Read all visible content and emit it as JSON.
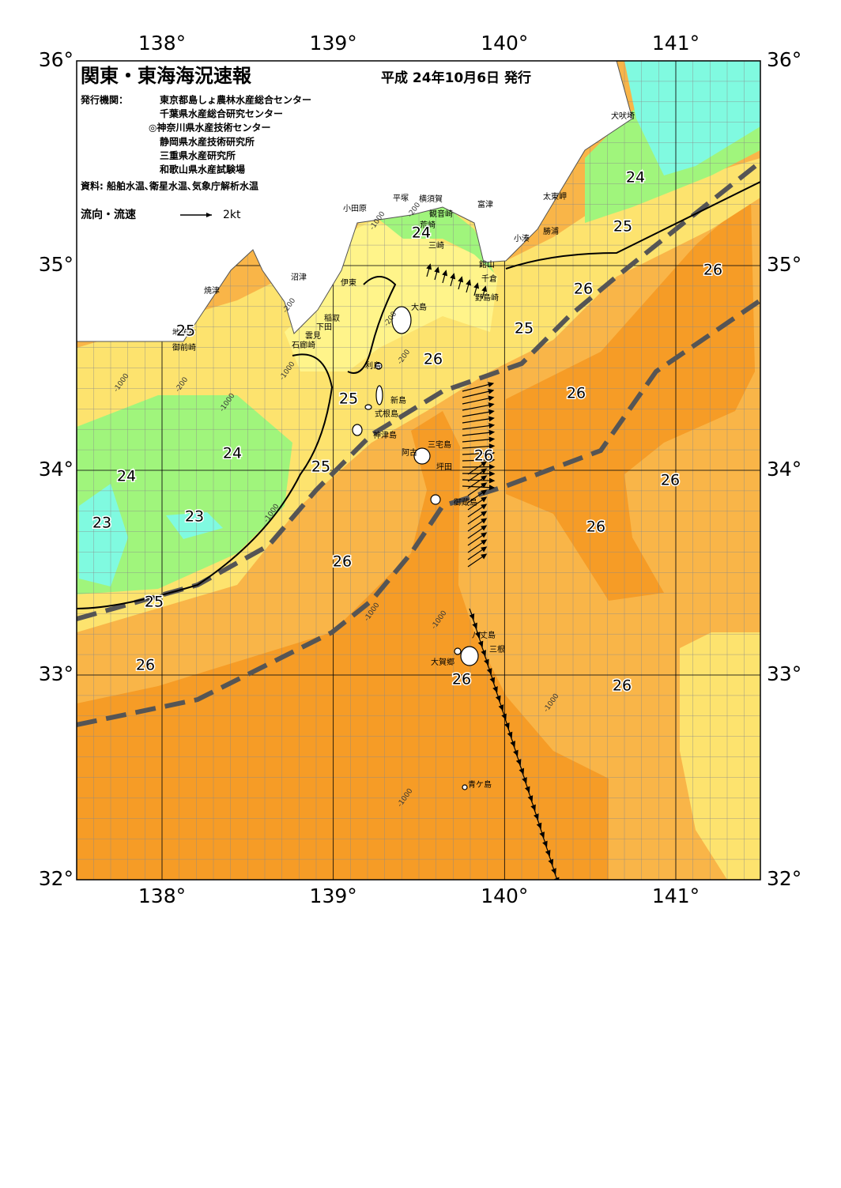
{
  "header": {
    "title": "関東・東海海況速報",
    "date": "平成 24年10月6日 発行",
    "publisher_label": "発行機関：",
    "publishers": [
      "東京都島しょ農林水産総合センター",
      "千葉県水産総合研究センター",
      "◎神奈川県水産技術センター",
      "静岡県水産技術研究所",
      "三重県水産研究所",
      "和歌山県水産試験場"
    ],
    "source": "資料: 船舶水温､衛星水温､気象庁解析水温"
  },
  "legend": {
    "label": "流向・流速",
    "speed": "2kt"
  },
  "axes": {
    "lon_ticks": [
      {
        "value": 138,
        "label": "138°"
      },
      {
        "value": 139,
        "label": "139°"
      },
      {
        "value": 140,
        "label": "140°"
      },
      {
        "value": 141,
        "label": "141°"
      }
    ],
    "lat_ticks": [
      {
        "value": 36,
        "label": "36°"
      },
      {
        "value": 35,
        "label": "35°"
      },
      {
        "value": 34,
        "label": "34°"
      },
      {
        "value": 33,
        "label": "33°"
      },
      {
        "value": 32,
        "label": "32°"
      }
    ]
  },
  "places": [
    "犬吠埼",
    "太東岬",
    "勝浦",
    "小湊",
    "富津",
    "横須賀",
    "平塚",
    "観音崎",
    "小田原",
    "荒崎",
    "三崎",
    "館山",
    "千倉",
    "野島崎",
    "沼津",
    "伊東",
    "大島",
    "焼津",
    "稲取",
    "下田",
    "雲見",
    "石廊崎",
    "御前崎",
    "地頭方",
    "利島",
    "新島",
    "式根島",
    "神津島",
    "三宅島",
    "阿古",
    "坪田",
    "御蔵島",
    "八丈島",
    "三根",
    "大賀郷",
    "青ケ島"
  ],
  "contour_labels": [
    "24",
    "26",
    "25",
    "24",
    "26",
    "25",
    "26",
    "25",
    "26",
    "25",
    "24",
    "24",
    "26",
    "26",
    "23",
    "23",
    "26",
    "26",
    "25",
    "26",
    "26",
    "26",
    "25"
  ],
  "depth_labels": [
    "-200",
    "-1000",
    "-200",
    "-1000",
    "-200",
    "-1000",
    "-200",
    "-200",
    "-1000",
    "-1000",
    "-1000",
    "-1000",
    "-1000",
    "-1000"
  ]
}
